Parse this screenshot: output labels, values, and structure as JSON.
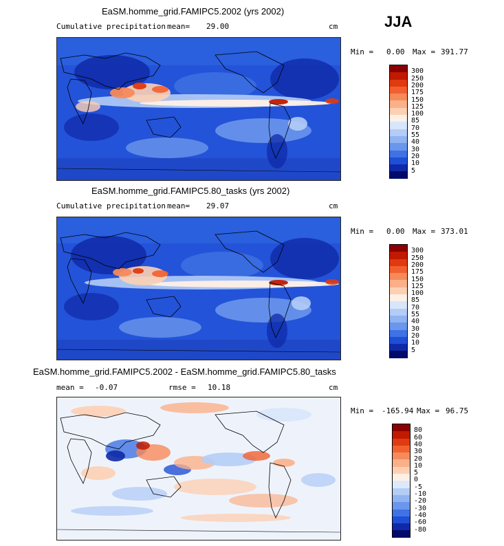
{
  "season": "JJA",
  "panels": [
    {
      "title": "EaSM.homme_grid.FAMIPC5.2002 (yrs 2002)",
      "left_label": "Cumulative precipitation",
      "mean_label": "mean=",
      "mean_value": "29.00",
      "units": "cm",
      "min_label": "Min =",
      "min_value": "0.00",
      "max_label": "Max =",
      "max_value": "391.77",
      "colorbar": {
        "labels": [
          "300",
          "250",
          "200",
          "175",
          "150",
          "125",
          "100",
          "85",
          "70",
          "55",
          "40",
          "30",
          "20",
          "10",
          "5"
        ],
        "colors": [
          "#8b0000",
          "#c01a00",
          "#e03a10",
          "#f26030",
          "#f78a5a",
          "#fbb08a",
          "#fdd0b4",
          "#fff0e6",
          "#d8e6fb",
          "#b4cdf7",
          "#90b3f2",
          "#6a96ec",
          "#3f72e4",
          "#1f4fd6",
          "#0f2aa8",
          "#000a6a"
        ]
      }
    },
    {
      "title": "EaSM.homme_grid.FAMIPC5.80_tasks (yrs 2002)",
      "left_label": "Cumulative precipitation",
      "mean_label": "mean=",
      "mean_value": "29.07",
      "units": "cm",
      "min_label": "Min =",
      "min_value": "0.00",
      "max_label": "Max =",
      "max_value": "373.01",
      "colorbar": {
        "labels": [
          "300",
          "250",
          "200",
          "175",
          "150",
          "125",
          "100",
          "85",
          "70",
          "55",
          "40",
          "30",
          "20",
          "10",
          "5"
        ],
        "colors": [
          "#8b0000",
          "#c01a00",
          "#e03a10",
          "#f26030",
          "#f78a5a",
          "#fbb08a",
          "#fdd0b4",
          "#fff0e6",
          "#d8e6fb",
          "#b4cdf7",
          "#90b3f2",
          "#6a96ec",
          "#3f72e4",
          "#1f4fd6",
          "#0f2aa8",
          "#000a6a"
        ]
      }
    },
    {
      "title": "EaSM.homme_grid.FAMIPC5.2002 - EaSM.homme_grid.FAMIPC5.80_tasks",
      "mean_label": "mean =",
      "mean_value": "-0.07",
      "rmse_label": "rmse =",
      "rmse_value": "10.18",
      "units": "cm",
      "min_label": "Min =",
      "min_value": "-165.94",
      "max_label": "Max =",
      "max_value": "96.75",
      "colorbar": {
        "labels": [
          "80",
          "60",
          "40",
          "30",
          "20",
          "10",
          "5",
          "0",
          "-5",
          "-10",
          "-20",
          "-30",
          "-40",
          "-60",
          "-80"
        ],
        "colors": [
          "#8b0000",
          "#c01a00",
          "#e03a10",
          "#f26030",
          "#f78a5a",
          "#fbb08a",
          "#fdd0b4",
          "#fff0e6",
          "#dde9fb",
          "#b4cdf7",
          "#90b3f2",
          "#6a96ec",
          "#3f72e4",
          "#1f4fd6",
          "#0f2aa8",
          "#000a6a"
        ]
      }
    }
  ]
}
